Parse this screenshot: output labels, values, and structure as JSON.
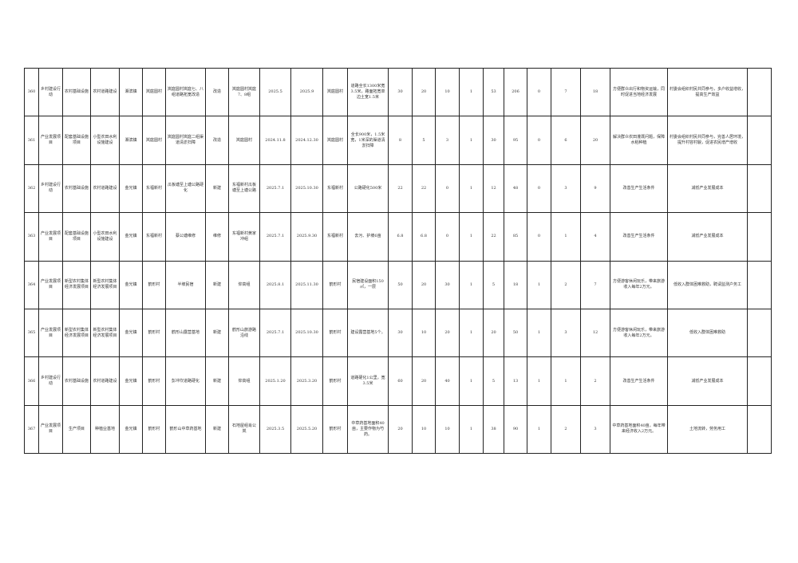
{
  "rows": [
    [
      "360",
      "乡村建设行动",
      "农村基础设施",
      "农村道路建设",
      "湘滨镇",
      "岚庭圆村",
      "岚庭圆村岚庭七、八组道路拓宽改造",
      "改造",
      "岚庭圆村岚庭7、8组",
      "2025.5",
      "2025.9",
      "岚庭圆村",
      "道路全长1300米宽3.5米，路面拓宽单边土宽1.5米",
      "30",
      "20",
      "10",
      "1",
      "53",
      "206",
      "0",
      "7",
      "18",
      "方便群众出行和物资运输，同时促进当地经济发展",
      "村委会组织村民共同参与，多户收益增收，提高生产效益",
      ""
    ],
    [
      "361",
      "产业发展项目",
      "配套基础设施项目",
      "小型农田水利设施建设",
      "湘滨镇",
      "岚庭圆村",
      "岚庭圆村岚庭二组渠道清淤扫障",
      "改造",
      "岚庭圆村",
      "2024.11.8",
      "2024.12.30",
      "岚庭圆村",
      "全长900米，1.5米宽，1米深的渠道清淤扫障",
      "8",
      "5",
      "3",
      "1",
      "30",
      "95",
      "0",
      "6",
      "20",
      "解决群众农田灌溉问题，保障水稻种植",
      "村委会组织村民共同参与，完善人居环境，提升村容村貌，促进农民增产增收",
      ""
    ],
    [
      "362",
      "乡村建设行动",
      "农村基础设施",
      "农村道路建设",
      "金光镇",
      "东福新村",
      "瓜板塘至上塘公路硬化",
      "新建",
      "东福新村瓜板塘至上塘公路",
      "2025.7.1",
      "2025.10.30",
      "东福新村",
      "公路硬化500米",
      "22",
      "22",
      "0",
      "1",
      "12",
      "48",
      "0",
      "3",
      "9",
      "改善生产生活条件",
      "减低产业发展成本",
      ""
    ],
    [
      "363",
      "产业发展项目",
      "配套基础设施项目",
      "小型农田水利设施建设",
      "金光镇",
      "东福新村",
      "蔡公塘维修",
      "维修",
      "东福新村黄家冲组",
      "2025.7.1",
      "2025.9.30",
      "东福新村",
      "去污、护坡6亩",
      "6.8",
      "6.8",
      "0",
      "1",
      "22",
      "85",
      "0",
      "1",
      "4",
      "改善生产生活条件",
      "减低产业发展成本",
      ""
    ],
    [
      "364",
      "产业发展项目",
      "新型农村集体经济发展项目",
      "新型农村集体经济发展项目",
      "金光镇",
      "鹤形村",
      "半坡民宿",
      "新建",
      "仰高组",
      "2025.8.1",
      "2025.11.30",
      "鹤形村",
      "民宿建设面积150㎡，一层",
      "50",
      "20",
      "30",
      "1",
      "5",
      "18",
      "1",
      "2",
      "7",
      "方便游客休闲玩乐，带来旅游收入每年2万元。",
      "低收入群体困难救助，聘请监测户务工",
      ""
    ],
    [
      "365",
      "产业发展项目",
      "新型农村集体经济发展项目",
      "新型农村集体经济发展项目",
      "金光镇",
      "鹤形村",
      "鹤形山露营基地",
      "新建",
      "鹤形山旅游路沿线",
      "2025.7.1",
      "2025.10.30",
      "鹤形村",
      "建设露营基地5个。",
      "30",
      "10",
      "20",
      "1",
      "20",
      "50",
      "1",
      "3",
      "12",
      "方便游客休闲玩乐，带来旅游收入每年2万元。",
      "低收入群体困难救助",
      ""
    ],
    [
      "366",
      "乡村建设行动",
      "农村基础设施",
      "农村道路建设",
      "金光镇",
      "鹤形村",
      "彭冲坎道路硬化",
      "新建",
      "仰高组",
      "2025.1.20",
      "2025.3.20",
      "鹤形村",
      "道路硬化1公里，宽3.5米",
      "60",
      "20",
      "40",
      "1",
      "5",
      "13",
      "1",
      "1",
      "2",
      "改善生产生活条件",
      "减低产业发展成本",
      ""
    ],
    [
      "367",
      "产业发展项目",
      "生产项目",
      "种植业基地",
      "金光镇",
      "鹤形村",
      "鹤形山中草药基地",
      "新建",
      "石地屋组肖公岚",
      "2025.3.5",
      "2025.5.20",
      "鹤形村",
      "中草药基地面积40亩，主要作物为芍药。",
      "20",
      "10",
      "10",
      "1",
      "38",
      "90",
      "1",
      "2",
      "3",
      "中草药基地面积40亩，每年带来经济收入2万元。",
      "土地流转，劳务用工",
      ""
    ]
  ]
}
